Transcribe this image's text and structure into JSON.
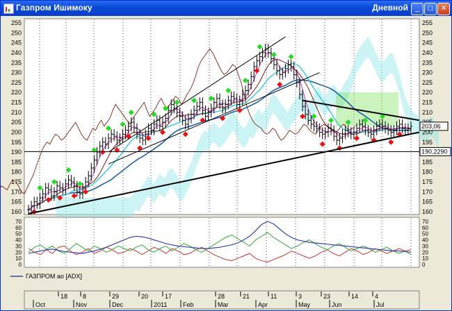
{
  "window": {
    "title": "Газпром Ишимоку",
    "mode": "Дневной",
    "buttons": {
      "minimize": "_",
      "maximize": "□",
      "close": "✕"
    }
  },
  "colors": {
    "title_bar": "#0a48d8",
    "price_bars": "#000000",
    "buy_marker": "#22dd22",
    "sell_marker": "#ee1111",
    "tenkan": "#cc33cc",
    "kijun": "#7a1a1a",
    "chikou": "#8b3a2a",
    "ma_fast": "#33c8d8",
    "ma_slow": "#1f5fa8",
    "cloud_fill": "#8ee6e6",
    "cloud_fill_green": "#66dd44",
    "adx": "#3344aa",
    "di_plus": "#33aa33",
    "di_minus": "#cc3333"
  },
  "chart_data": {
    "type": "candlestick",
    "price_axis": {
      "min": 160,
      "max": 255,
      "step": 5,
      "ticks": [
        "160",
        "165",
        "170",
        "175",
        "180",
        "185",
        "190",
        "195",
        "200",
        "205",
        "210",
        "215",
        "220",
        "225",
        "230",
        "235",
        "240",
        "245",
        "250",
        "255"
      ]
    },
    "horizontal_line": {
      "value": 190.229,
      "label": "190,2290"
    },
    "last_price_label": "203,06",
    "adx_panel": {
      "name": "ГАЗПРОМ ао [ADX]",
      "min": 0,
      "max": 70,
      "step": 10,
      "ticks": [
        "0",
        "10",
        "20",
        "30",
        "40",
        "50",
        "60",
        "70"
      ]
    },
    "time_axis": {
      "day_labels": [
        "18",
        "8",
        "29",
        "20",
        "17",
        "28",
        "21",
        "11",
        "3",
        "23",
        "14",
        "4"
      ],
      "month_labels": [
        "Oct",
        "Nov",
        "Dec",
        "2011",
        "Feb",
        "Mar",
        "Apr",
        "May",
        "Jun",
        "Jul"
      ]
    },
    "close_series": [
      161,
      163,
      165,
      164,
      167,
      169,
      172,
      171,
      168,
      170,
      173,
      172,
      171,
      174,
      176,
      175,
      173,
      170,
      169,
      172,
      175,
      178,
      182,
      186,
      190,
      193,
      195,
      194,
      197,
      199,
      198,
      196,
      197,
      199,
      201,
      203,
      205,
      202,
      199,
      197,
      196,
      199,
      202,
      201,
      204,
      206,
      203,
      205,
      207,
      211,
      214,
      212,
      210,
      208,
      206,
      204,
      207,
      209,
      211,
      213,
      215,
      211,
      208,
      210,
      212,
      215,
      217,
      214,
      212,
      214,
      216,
      218,
      217,
      214,
      216,
      219,
      221,
      224,
      228,
      233,
      236,
      238,
      240,
      242,
      240,
      237,
      234,
      231,
      229,
      230,
      232,
      234,
      233,
      229,
      225,
      219,
      213,
      209,
      206,
      204,
      203,
      202,
      200,
      199,
      200,
      202,
      201,
      198,
      196,
      197,
      199,
      201,
      200,
      199,
      200,
      202,
      204,
      203,
      201,
      200,
      199,
      201,
      203,
      204,
      203,
      202,
      201,
      200,
      201,
      203,
      204,
      202,
      201,
      202,
      203
    ],
    "buy_signals": [
      4,
      9,
      14,
      18,
      23,
      28,
      33,
      36,
      44,
      48,
      52,
      58,
      64,
      70,
      76,
      81,
      86,
      92,
      100,
      106,
      112,
      118,
      124
    ],
    "sell_signals": [
      2,
      7,
      11,
      16,
      20,
      26,
      31,
      35,
      39,
      42,
      47,
      55,
      61,
      68,
      74,
      80,
      88,
      96,
      103,
      109,
      115,
      121,
      127,
      130
    ],
    "adx": [
      18,
      20,
      22,
      24,
      25,
      23,
      21,
      20,
      19,
      18,
      20,
      22,
      25,
      28,
      32,
      36,
      40,
      44,
      46,
      45,
      43,
      40,
      37,
      34,
      32,
      30,
      29,
      28,
      27,
      26,
      26,
      27,
      28,
      30,
      32,
      35,
      40,
      46,
      55,
      65,
      70,
      66,
      58,
      50,
      44,
      40,
      38,
      36,
      35,
      34,
      33,
      32,
      31,
      30,
      29,
      28,
      27,
      26,
      25,
      24,
      23,
      22,
      22,
      21,
      20
    ],
    "di_plus": [
      20,
      28,
      32,
      25,
      30,
      22,
      18,
      26,
      34,
      28,
      22,
      30,
      26,
      20,
      24,
      30,
      26,
      22,
      28,
      32,
      24,
      20,
      26,
      30,
      22,
      28,
      34,
      30,
      24,
      20,
      26,
      32,
      38,
      44,
      48,
      42,
      36,
      30,
      40,
      46,
      52,
      44,
      38,
      32,
      26,
      30,
      36,
      40,
      34,
      28,
      24,
      30,
      34,
      28,
      22,
      26,
      30,
      26,
      20,
      24,
      28,
      22,
      18,
      22,
      16
    ],
    "di_minus": [
      26,
      20,
      16,
      24,
      18,
      28,
      30,
      22,
      16,
      20,
      26,
      18,
      22,
      28,
      24,
      18,
      20,
      26,
      22,
      16,
      22,
      28,
      24,
      18,
      26,
      22,
      16,
      18,
      24,
      28,
      22,
      16,
      12,
      8,
      6,
      10,
      14,
      18,
      10,
      6,
      4,
      8,
      12,
      16,
      22,
      18,
      14,
      10,
      14,
      20,
      24,
      18,
      14,
      20,
      26,
      22,
      16,
      20,
      26,
      22,
      18,
      22,
      26,
      22,
      24
    ]
  }
}
